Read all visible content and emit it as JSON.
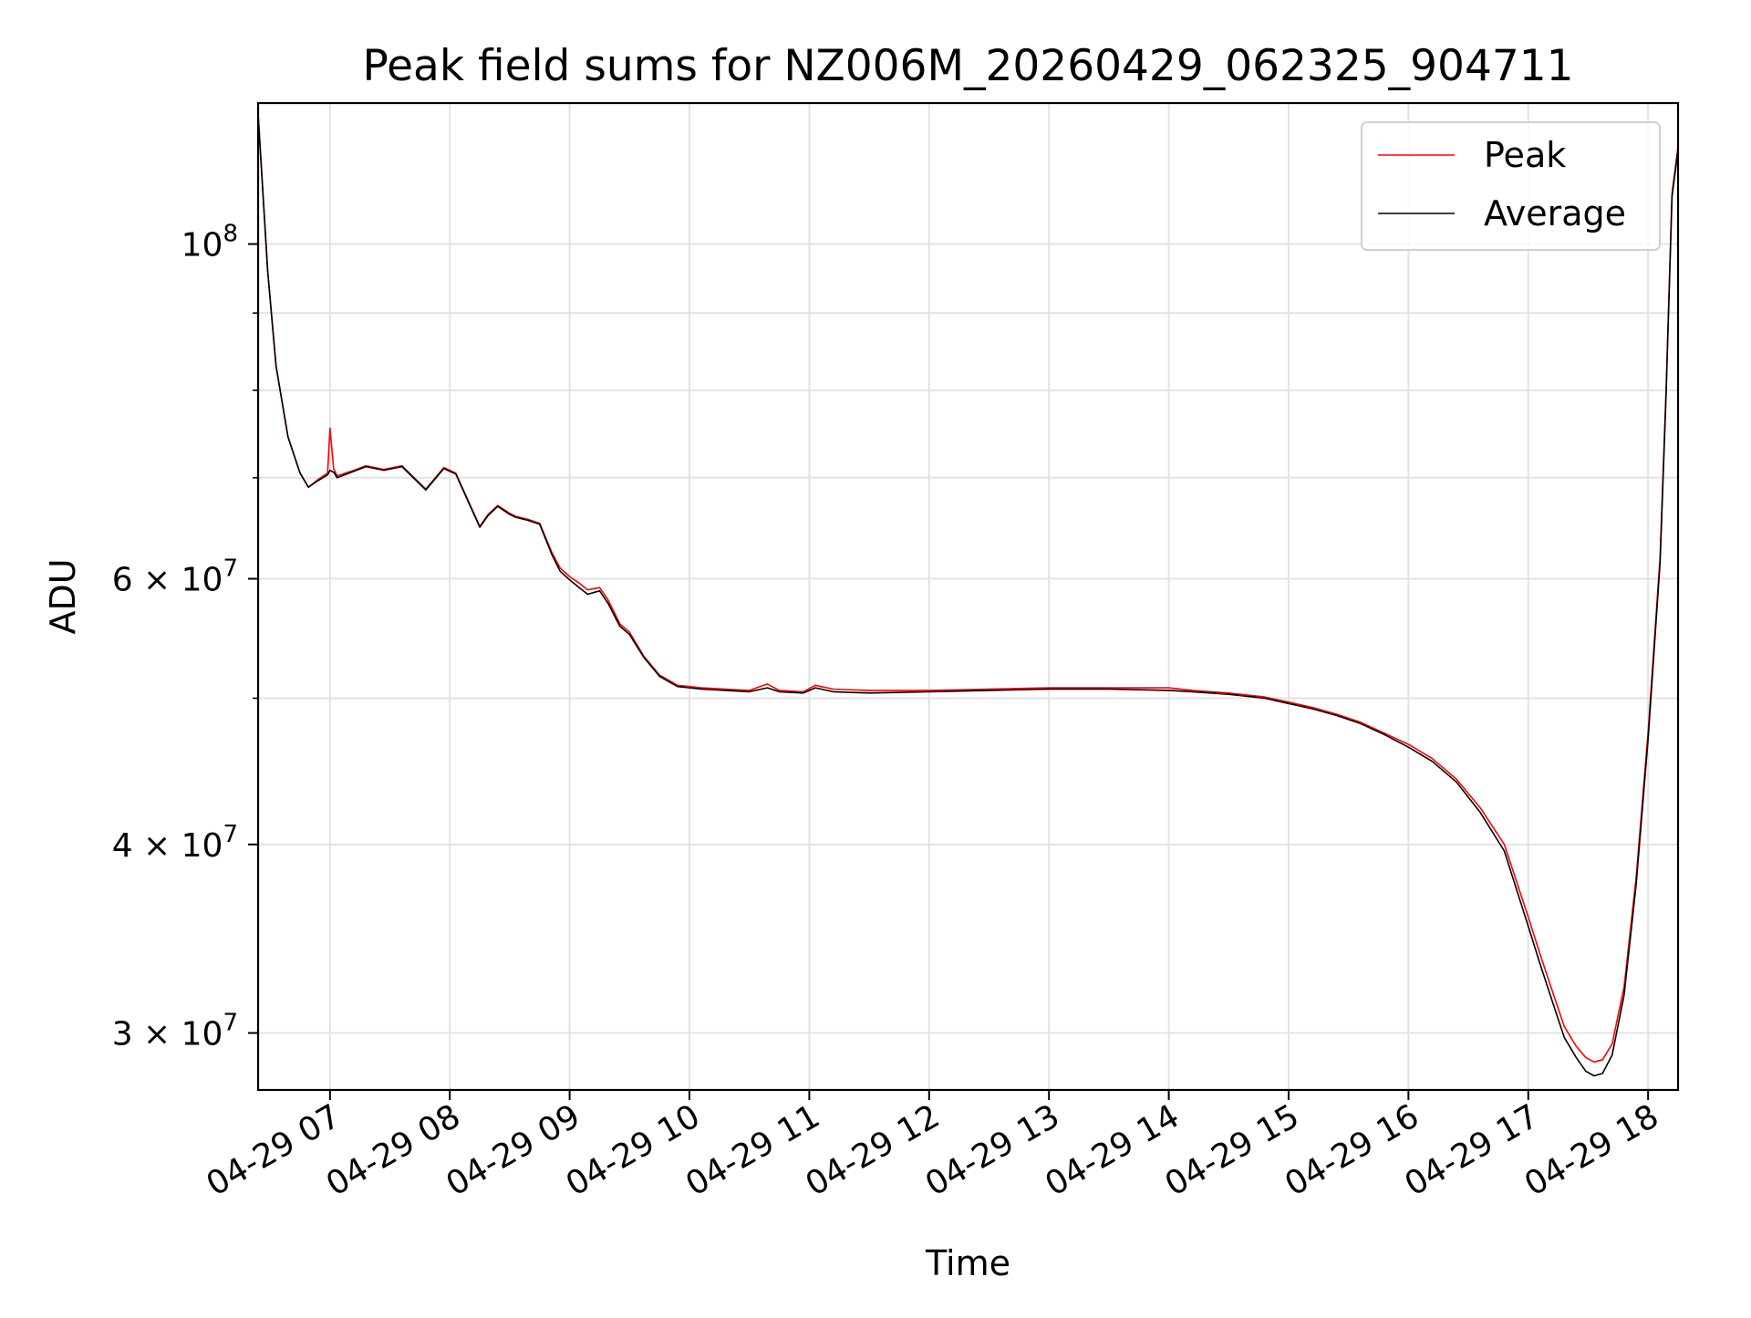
{
  "chart_data": {
    "type": "line",
    "title": "Peak field sums for NZ006M_20260429_062325_904711",
    "xlabel": "Time",
    "ylabel": "ADU",
    "yscale": "log",
    "grid": true,
    "legend_position": "top-right",
    "x_unit": "hours (2026-04-29)",
    "xlim": [
      6.4,
      18.25
    ],
    "ylim": [
      27500000,
      124000000
    ],
    "x_ticks": [
      {
        "value": 7,
        "label": "04-29 07"
      },
      {
        "value": 8,
        "label": "04-29 08"
      },
      {
        "value": 9,
        "label": "04-29 09"
      },
      {
        "value": 10,
        "label": "04-29 10"
      },
      {
        "value": 11,
        "label": "04-29 11"
      },
      {
        "value": 12,
        "label": "04-29 12"
      },
      {
        "value": 13,
        "label": "04-29 13"
      },
      {
        "value": 14,
        "label": "04-29 14"
      },
      {
        "value": 15,
        "label": "04-29 15"
      },
      {
        "value": 16,
        "label": "04-29 16"
      },
      {
        "value": 17,
        "label": "04-29 17"
      },
      {
        "value": 18,
        "label": "04-29 18"
      }
    ],
    "y_ticks": [
      {
        "value": 30000000,
        "mantissa": "3 × 10",
        "exp": "7"
      },
      {
        "value": 40000000,
        "mantissa": "4 × 10",
        "exp": "7"
      },
      {
        "value": 60000000,
        "mantissa": "6 × 10",
        "exp": "7"
      },
      {
        "value": 100000000,
        "mantissa": "10",
        "exp": "8"
      }
    ],
    "y_minor_ticks": [
      50000000,
      70000000,
      80000000,
      90000000
    ],
    "series": [
      {
        "name": "Peak",
        "color": "#ff0000",
        "x": [
          6.4,
          6.48,
          6.55,
          6.65,
          6.75,
          6.82,
          6.9,
          6.98,
          7.0,
          7.03,
          7.06,
          7.2,
          7.3,
          7.45,
          7.6,
          7.8,
          7.95,
          8.05,
          8.15,
          8.25,
          8.32,
          8.4,
          8.5,
          8.55,
          8.65,
          8.75,
          8.85,
          8.92,
          9.0,
          9.08,
          9.15,
          9.25,
          9.32,
          9.42,
          9.5,
          9.62,
          9.75,
          9.9,
          10.1,
          10.3,
          10.5,
          10.65,
          10.75,
          10.95,
          11.05,
          11.2,
          11.5,
          12.0,
          12.5,
          13.0,
          13.5,
          14.0,
          14.2,
          14.5,
          14.8,
          15.0,
          15.2,
          15.4,
          15.6,
          15.8,
          16.0,
          16.2,
          16.4,
          16.6,
          16.8,
          17.0,
          17.1,
          17.2,
          17.3,
          17.4,
          17.48,
          17.55,
          17.62,
          17.7,
          17.8,
          17.9,
          18.0,
          18.1,
          18.15,
          18.2,
          18.25
        ],
        "y": [
          122000000,
          96000000,
          83000000,
          74500000,
          70500000,
          69000000,
          69800000,
          70500000,
          75500000,
          71000000,
          70200000,
          70800000,
          71300000,
          70900000,
          71300000,
          68800000,
          71100000,
          70500000,
          67700000,
          65000000,
          66200000,
          67100000,
          66300000,
          66000000,
          65700000,
          65300000,
          62500000,
          61000000,
          60200000,
          59600000,
          59000000,
          59200000,
          58100000,
          56000000,
          55300000,
          53300000,
          51800000,
          51000000,
          50800000,
          50700000,
          50600000,
          51100000,
          50600000,
          50500000,
          51000000,
          50700000,
          50600000,
          50600000,
          50700000,
          50800000,
          50800000,
          50800000,
          50600000,
          50400000,
          50100000,
          49700000,
          49300000,
          48800000,
          48200000,
          47400000,
          46600000,
          45600000,
          44200000,
          42300000,
          40000000,
          35800000,
          33800000,
          32000000,
          30300000,
          29400000,
          28900000,
          28700000,
          28800000,
          29500000,
          32200000,
          38000000,
          47500000,
          62000000,
          80000000,
          108000000,
          116000000
        ]
      },
      {
        "name": "Average",
        "color": "#000000",
        "x": [
          6.4,
          6.48,
          6.55,
          6.65,
          6.75,
          6.82,
          6.9,
          6.98,
          7.0,
          7.03,
          7.06,
          7.2,
          7.3,
          7.45,
          7.6,
          7.8,
          7.95,
          8.05,
          8.15,
          8.25,
          8.32,
          8.4,
          8.5,
          8.55,
          8.65,
          8.75,
          8.85,
          8.92,
          9.0,
          9.08,
          9.15,
          9.25,
          9.32,
          9.42,
          9.5,
          9.62,
          9.75,
          9.9,
          10.1,
          10.3,
          10.5,
          10.65,
          10.75,
          10.95,
          11.05,
          11.2,
          11.5,
          12.0,
          12.5,
          13.0,
          13.5,
          14.0,
          14.2,
          14.5,
          14.8,
          15.0,
          15.2,
          15.4,
          15.6,
          15.8,
          16.0,
          16.2,
          16.4,
          16.6,
          16.8,
          17.0,
          17.1,
          17.2,
          17.3,
          17.4,
          17.48,
          17.55,
          17.62,
          17.7,
          17.8,
          17.9,
          18.0,
          18.1,
          18.15,
          18.2,
          18.25
        ],
        "y": [
          122000000,
          96000000,
          83000000,
          74500000,
          70500000,
          69000000,
          69700000,
          70300000,
          70800000,
          70600000,
          70000000,
          70700000,
          71200000,
          70800000,
          71200000,
          68700000,
          71000000,
          70400000,
          67600000,
          64900000,
          66100000,
          67000000,
          66200000,
          65900000,
          65600000,
          65200000,
          62300000,
          60700000,
          59900000,
          59200000,
          58600000,
          58900000,
          57800000,
          55800000,
          55100000,
          53200000,
          51700000,
          50900000,
          50700000,
          50600000,
          50500000,
          50800000,
          50500000,
          50400000,
          50800000,
          50500000,
          50400000,
          50500000,
          50600000,
          50700000,
          50700000,
          50600000,
          50500000,
          50300000,
          50000000,
          49600000,
          49200000,
          48700000,
          48100000,
          47300000,
          46400000,
          45400000,
          44000000,
          42000000,
          39600000,
          35300000,
          33300000,
          31500000,
          29800000,
          28900000,
          28300000,
          28100000,
          28200000,
          29000000,
          31800000,
          37600000,
          47000000,
          61500000,
          79500000,
          107500000,
          115500000
        ]
      }
    ]
  }
}
